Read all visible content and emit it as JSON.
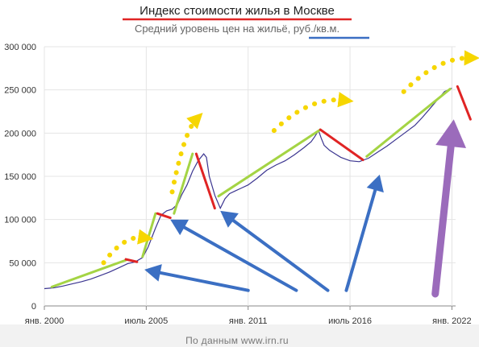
{
  "chart_data": {
    "type": "line",
    "title": "Индекс стоимости жилья в Москве",
    "subtitle": "Средний уровень цен на жильё, руб./кв.м.",
    "subtitle_main": "Средний уровень цен на жильё,",
    "subtitle_unit": "руб./кв.м.",
    "source": "По данным www.irn.ru",
    "ylim": [
      0,
      300000
    ],
    "xlim": [
      2000.0,
      2022.2
    ],
    "grid": true,
    "y_ticks": [
      0,
      50000,
      100000,
      150000,
      200000,
      250000,
      300000
    ],
    "y_tick_labels": [
      "0",
      "50 000",
      "100 000",
      "150 000",
      "200 000",
      "250 000",
      "300 000"
    ],
    "x_ticks": [
      {
        "x": 2000.0,
        "label": "янв. 2000"
      },
      {
        "x": 2005.5,
        "label": "июль 2005"
      },
      {
        "x": 2011.0,
        "label": "янв. 2011"
      },
      {
        "x": 2016.5,
        "label": "июль 2016"
      },
      {
        "x": 2022.0,
        "label": "янв. 2022"
      }
    ],
    "series": [
      {
        "color": "#3b3590",
        "x": [
          2000.0,
          2000.5,
          2001.0,
          2001.5,
          2002.0,
          2002.5,
          2003.0,
          2003.5,
          2004.0,
          2004.5,
          2004.9,
          2005.3,
          2005.6,
          2006.0,
          2006.3,
          2006.6,
          2006.9,
          2007.2,
          2007.4,
          2007.7,
          2008.0,
          2008.3,
          2008.6,
          2008.75,
          2008.9,
          2009.2,
          2009.5,
          2009.75,
          2010.0,
          2010.3,
          2010.6,
          2011.0,
          2011.5,
          2012.0,
          2012.5,
          2013.0,
          2013.5,
          2014.0,
          2014.4,
          2014.6,
          2014.8,
          2014.95,
          2015.1,
          2015.4,
          2015.7,
          2016.0,
          2016.5,
          2017.0,
          2017.5,
          2018.0,
          2018.5,
          2019.0,
          2019.5,
          2020.0,
          2020.4,
          2020.8,
          2021.2,
          2021.6,
          2022.0
        ],
        "values": [
          20000,
          21000,
          23000,
          25500,
          28000,
          31000,
          35000,
          39000,
          44000,
          49000,
          51000,
          56000,
          68000,
          90000,
          105000,
          110000,
          112000,
          118000,
          128000,
          140000,
          156000,
          168000,
          176000,
          172000,
          150000,
          128000,
          113000,
          124000,
          130000,
          133000,
          136000,
          140000,
          148000,
          157000,
          163000,
          168000,
          175000,
          183000,
          190000,
          196000,
          203000,
          194000,
          186000,
          180000,
          176000,
          172000,
          168000,
          167000,
          171000,
          178000,
          185000,
          193000,
          201000,
          209000,
          218000,
          228000,
          238000,
          248000,
          252000
        ]
      }
    ],
    "annotations": {
      "colors": {
        "green": "#a4d444",
        "red": "#e02424",
        "blue": "#3b6fc3",
        "purple": "#9b6bbb",
        "yellow": "#f6d600"
      },
      "green_trend_lines": [
        {
          "from": [
            2000.4,
            22000
          ],
          "to": [
            2004.4,
            53000
          ]
        },
        {
          "from": [
            2005.3,
            57000
          ],
          "to": [
            2006.0,
            107000
          ]
        },
        {
          "from": [
            2007.0,
            107000
          ],
          "to": [
            2008.0,
            176000
          ]
        },
        {
          "from": [
            2009.4,
            127000
          ],
          "to": [
            2014.9,
            204000
          ]
        },
        {
          "from": [
            2017.4,
            173000
          ],
          "to": [
            2021.9,
            251000
          ]
        }
      ],
      "red_trend_lines": [
        {
          "from": [
            2004.4,
            54000
          ],
          "to": [
            2005.0,
            51000
          ]
        },
        {
          "from": [
            2006.1,
            107000
          ],
          "to": [
            2006.8,
            102000
          ]
        },
        {
          "from": [
            2008.2,
            176000
          ],
          "to": [
            2009.2,
            113000
          ]
        },
        {
          "from": [
            2014.9,
            204000
          ],
          "to": [
            2017.2,
            169000
          ]
        },
        {
          "from": [
            2022.3,
            254000
          ],
          "to": [
            2023.0,
            216000
          ]
        }
      ],
      "blue_arrows": [
        {
          "from": [
            2011.0,
            18000
          ],
          "to": [
            2005.4,
            42000
          ]
        },
        {
          "from": [
            2013.6,
            18000
          ],
          "to": [
            2006.8,
            100000
          ]
        },
        {
          "from": [
            2015.3,
            18000
          ],
          "to": [
            2009.5,
            110000
          ]
        },
        {
          "from": [
            2016.3,
            18000
          ],
          "to": [
            2018.1,
            152000
          ]
        }
      ],
      "purple_arrow": {
        "from": [
          2021.1,
          14000
        ],
        "to": [
          2022.1,
          216000
        ]
      },
      "yellow_arcs": [
        {
          "from": [
            2003.2,
            50000
          ],
          "to": [
            2005.4,
            79000
          ],
          "bulge": 18000
        },
        {
          "from": [
            2006.9,
            132000
          ],
          "to": [
            2008.2,
            216000
          ],
          "bulge": 28000
        },
        {
          "from": [
            2012.4,
            203000
          ],
          "to": [
            2016.2,
            238000
          ],
          "bulge": 22000
        },
        {
          "from": [
            2019.4,
            248000
          ],
          "to": [
            2023.0,
            287000
          ],
          "bulge": 20000
        }
      ]
    }
  }
}
